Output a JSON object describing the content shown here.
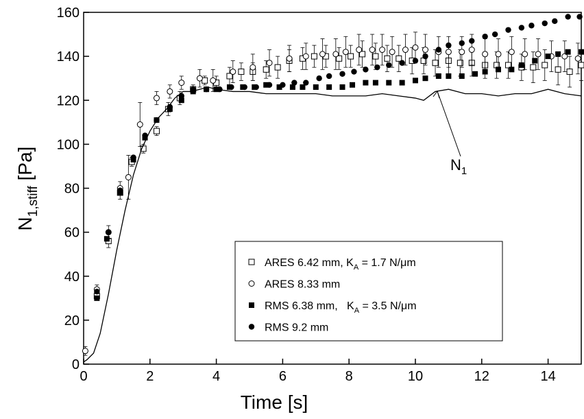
{
  "chart_data": {
    "type": "scatter",
    "x_label": "Time [s]",
    "y_label": {
      "main": "N",
      "sub": "1,stiff",
      "tail": " [Pa]"
    },
    "annotation": {
      "main": "N",
      "sub": "1"
    },
    "xlim": [
      0,
      15
    ],
    "xticks": [
      0,
      2,
      4,
      6,
      8,
      10,
      12,
      14
    ],
    "ylim": [
      0,
      160
    ],
    "yticks": [
      0,
      20,
      40,
      60,
      80,
      100,
      120,
      140,
      160
    ],
    "series": [
      {
        "name": "ARES 6.42 mm, K",
        "name_sub": "A",
        "name_tail": " = 1.7 N/μm",
        "marker": "open-square",
        "color": "#000000",
        "x": [
          0.4,
          0.75,
          1.1,
          1.45,
          1.8,
          2.2,
          2.55,
          2.9,
          3.3,
          3.65,
          4.0,
          4.4,
          4.75,
          5.1,
          5.5,
          5.85,
          6.2,
          6.6,
          6.95,
          7.3,
          7.7,
          8.05,
          8.4,
          8.8,
          9.15,
          9.5,
          9.9,
          10.25,
          10.6,
          11.0,
          11.35,
          11.7,
          12.1,
          12.45,
          12.8,
          13.2,
          13.55,
          13.9,
          14.3,
          14.65,
          15.0
        ],
        "values": [
          31,
          56,
          78,
          92,
          98,
          106,
          116,
          121,
          125,
          129,
          128,
          131,
          133,
          133,
          134,
          135,
          138,
          139,
          140,
          140,
          139,
          140,
          141,
          140,
          139,
          139,
          138,
          138,
          137,
          138,
          137,
          137,
          136,
          136,
          136,
          135,
          135,
          136,
          134,
          133,
          136
        ],
        "errors": [
          2,
          3,
          3,
          2,
          2,
          2,
          3,
          3,
          2,
          2,
          3,
          4,
          4,
          4,
          4,
          5,
          5,
          5,
          5,
          5,
          5,
          5,
          6,
          6,
          6,
          6,
          6,
          6,
          6,
          6,
          6,
          6,
          6,
          6,
          6,
          6,
          7,
          7,
          7,
          7,
          7
        ]
      },
      {
        "name": "ARES 8.33 mm",
        "marker": "open-circle",
        "color": "#000000",
        "x": [
          0.05,
          0.4,
          0.75,
          1.1,
          1.35,
          1.7,
          2.2,
          2.6,
          2.95,
          3.5,
          3.9,
          4.5,
          5.1,
          5.6,
          6.2,
          6.7,
          7.2,
          7.6,
          7.9,
          8.3,
          8.7,
          9.0,
          9.3,
          9.7,
          10.0,
          10.3,
          10.7,
          11.0,
          11.4,
          11.7,
          12.1,
          12.5,
          12.9,
          13.3,
          13.7,
          14.1,
          14.5,
          14.9
        ],
        "values": [
          6,
          34,
          60,
          80,
          85,
          109,
          121,
          124,
          128,
          130,
          129,
          133,
          135,
          137,
          139,
          140,
          141,
          141,
          142,
          143,
          143,
          143,
          142,
          143,
          144,
          143,
          142,
          142,
          142,
          143,
          141,
          141,
          142,
          141,
          141,
          140,
          140,
          139
        ],
        "errors": [
          2,
          2,
          3,
          3,
          10,
          10,
          3,
          3,
          3,
          4,
          5,
          5,
          6,
          6,
          6,
          6,
          7,
          7,
          7,
          7,
          7,
          7,
          7,
          7,
          7,
          7,
          7,
          7,
          7,
          7,
          7,
          7,
          7,
          7,
          7,
          7,
          7,
          7
        ]
      },
      {
        "name": "RMS 6.38 mm,   K",
        "name_sub": "A",
        "name_tail": " = 3.5 N/μm",
        "marker": "filled-square",
        "color": "#000000",
        "x": [
          0.4,
          0.7,
          1.1,
          1.5,
          1.85,
          2.2,
          2.6,
          2.95,
          3.3,
          3.7,
          4.0,
          4.4,
          4.8,
          5.15,
          5.5,
          5.9,
          6.3,
          6.6,
          7.0,
          7.4,
          7.8,
          8.1,
          8.5,
          8.8,
          9.2,
          9.6,
          10.0,
          10.3,
          10.7,
          11.0,
          11.4,
          11.8,
          12.1,
          12.5,
          12.9,
          13.2,
          13.6,
          14.0,
          14.3,
          14.6,
          15.0
        ],
        "values": [
          30,
          57,
          78,
          93,
          103,
          111,
          116,
          120,
          124,
          125,
          125,
          126,
          126,
          126,
          127,
          126,
          126,
          126,
          126,
          126,
          126,
          127,
          128,
          128,
          128,
          128,
          129,
          130,
          131,
          131,
          131,
          132,
          133,
          134,
          134,
          136,
          138,
          140,
          141,
          142,
          142
        ]
      },
      {
        "name": "RMS 9.2 mm",
        "marker": "filled-circle",
        "color": "#000000",
        "x": [
          0.4,
          0.75,
          1.1,
          1.5,
          1.85,
          2.2,
          2.6,
          2.95,
          3.3,
          3.7,
          4.1,
          4.45,
          4.85,
          5.2,
          5.6,
          6.0,
          6.35,
          6.7,
          7.1,
          7.4,
          7.8,
          8.15,
          8.5,
          8.85,
          9.2,
          9.6,
          10.0,
          10.3,
          10.7,
          11.0,
          11.4,
          11.7,
          12.1,
          12.4,
          12.8,
          13.2,
          13.5,
          13.9,
          14.2,
          14.6,
          14.95
        ],
        "values": [
          33,
          60,
          79,
          94,
          104,
          111,
          117,
          122,
          125,
          125,
          125,
          126,
          126,
          126,
          127,
          127,
          128,
          128,
          130,
          131,
          132,
          133,
          134,
          135,
          136,
          137,
          138,
          140,
          143,
          145,
          146,
          147,
          149,
          150,
          152,
          153,
          154,
          155,
          156,
          158,
          158
        ]
      },
      {
        "marker": "line",
        "color": "#000000",
        "x": [
          0,
          0.1,
          0.3,
          0.5,
          0.75,
          1.0,
          1.25,
          1.5,
          1.75,
          2.0,
          2.25,
          2.5,
          2.75,
          3.0,
          3.25,
          3.5,
          3.75,
          4.0,
          4.5,
          5,
          5.5,
          6,
          6.5,
          7,
          7.5,
          8,
          8.5,
          9,
          9.5,
          10,
          10.25,
          10.6,
          11,
          11.5,
          12,
          12.5,
          13,
          13.5,
          14,
          14.5,
          15
        ],
        "values": [
          1,
          2,
          5,
          14,
          32,
          52,
          70,
          86,
          98,
          106,
          112,
          116,
          121,
          124,
          124,
          125,
          126,
          125,
          124,
          124,
          123,
          123,
          123,
          123,
          122,
          122,
          122,
          123,
          122,
          121,
          120,
          124,
          125,
          123,
          123,
          122,
          123,
          123,
          125,
          123,
          122
        ]
      }
    ]
  }
}
